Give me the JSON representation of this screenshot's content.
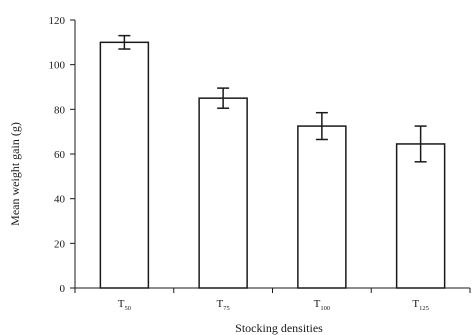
{
  "chart_data": {
    "type": "bar",
    "title": "",
    "xlabel": "Stocking densities",
    "ylabel": "Mean weight gain (g)",
    "categories": [
      {
        "base": "T",
        "sub": "50"
      },
      {
        "base": "T",
        "sub": "75"
      },
      {
        "base": "T",
        "sub": "100"
      },
      {
        "base": "T",
        "sub": "125"
      }
    ],
    "values": [
      110,
      85,
      72.5,
      64.5
    ],
    "error": [
      3,
      4.5,
      6,
      8
    ],
    "ylim": [
      0,
      120
    ],
    "yticks": [
      0,
      20,
      40,
      60,
      80,
      100,
      120
    ],
    "grid": false,
    "legend": "none",
    "colors": {
      "bar_fill": "#ffffff",
      "bar_stroke": "#1a1a1a",
      "axis": "#1a1a1a"
    }
  }
}
